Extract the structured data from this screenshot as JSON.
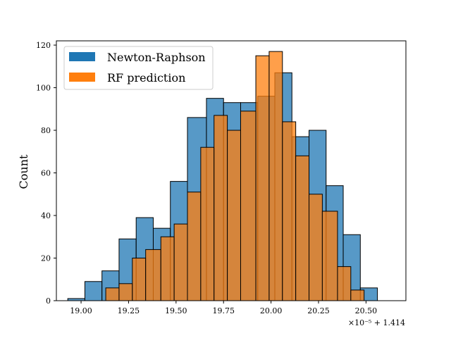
{
  "chart_data": {
    "type": "histogram",
    "ylabel": "Count",
    "xlabel": "",
    "x_offset_label": "×10⁻⁵ + 1.414",
    "xlim": [
      18.87,
      20.71
    ],
    "ylim": [
      0,
      122
    ],
    "xticks": [
      "19.00",
      "19.25",
      "19.50",
      "19.75",
      "20.00",
      "20.25",
      "20.50"
    ],
    "xtick_values": [
      19.0,
      19.25,
      19.5,
      19.75,
      20.0,
      20.25,
      20.5
    ],
    "yticks": [
      0,
      20,
      40,
      60,
      80,
      100,
      120
    ],
    "legend_position": "upper left",
    "grid": false,
    "series": [
      {
        "name": "Newton-Raphson",
        "color": "#1f77b4",
        "bins": [
          {
            "x0": 18.93,
            "x1": 19.02,
            "count": 1
          },
          {
            "x0": 19.02,
            "x1": 19.11,
            "count": 9
          },
          {
            "x0": 19.11,
            "x1": 19.2,
            "count": 14
          },
          {
            "x0": 19.2,
            "x1": 19.29,
            "count": 29
          },
          {
            "x0": 19.29,
            "x1": 19.38,
            "count": 39
          },
          {
            "x0": 19.38,
            "x1": 19.47,
            "count": 34
          },
          {
            "x0": 19.47,
            "x1": 19.56,
            "count": 56
          },
          {
            "x0": 19.56,
            "x1": 19.66,
            "count": 86
          },
          {
            "x0": 19.66,
            "x1": 19.75,
            "count": 95
          },
          {
            "x0": 19.75,
            "x1": 19.84,
            "count": 93
          },
          {
            "x0": 19.84,
            "x1": 19.93,
            "count": 93
          },
          {
            "x0": 19.93,
            "x1": 20.02,
            "count": 96
          },
          {
            "x0": 20.02,
            "x1": 20.11,
            "count": 107
          },
          {
            "x0": 20.11,
            "x1": 20.2,
            "count": 77
          },
          {
            "x0": 20.2,
            "x1": 20.29,
            "count": 80
          },
          {
            "x0": 20.29,
            "x1": 20.38,
            "count": 54
          },
          {
            "x0": 20.38,
            "x1": 20.47,
            "count": 31
          },
          {
            "x0": 20.47,
            "x1": 20.56,
            "count": 6
          }
        ]
      },
      {
        "name": "RF prediction",
        "color": "#ff7f0e",
        "bins": [
          {
            "x0": 19.13,
            "x1": 19.2,
            "count": 6
          },
          {
            "x0": 19.2,
            "x1": 19.27,
            "count": 8
          },
          {
            "x0": 19.27,
            "x1": 19.34,
            "count": 20
          },
          {
            "x0": 19.34,
            "x1": 19.42,
            "count": 24
          },
          {
            "x0": 19.42,
            "x1": 19.49,
            "count": 30
          },
          {
            "x0": 19.49,
            "x1": 19.56,
            "count": 36
          },
          {
            "x0": 19.56,
            "x1": 19.63,
            "count": 51
          },
          {
            "x0": 19.63,
            "x1": 19.7,
            "count": 72
          },
          {
            "x0": 19.7,
            "x1": 19.77,
            "count": 87
          },
          {
            "x0": 19.77,
            "x1": 19.84,
            "count": 80
          },
          {
            "x0": 19.84,
            "x1": 19.92,
            "count": 89
          },
          {
            "x0": 19.92,
            "x1": 19.99,
            "count": 115
          },
          {
            "x0": 19.99,
            "x1": 20.06,
            "count": 117
          },
          {
            "x0": 20.06,
            "x1": 20.13,
            "count": 84
          },
          {
            "x0": 20.13,
            "x1": 20.2,
            "count": 68
          },
          {
            "x0": 20.2,
            "x1": 20.27,
            "count": 50
          },
          {
            "x0": 20.27,
            "x1": 20.35,
            "count": 42
          },
          {
            "x0": 20.35,
            "x1": 20.42,
            "count": 16
          },
          {
            "x0": 20.42,
            "x1": 20.49,
            "count": 5
          }
        ]
      }
    ]
  }
}
